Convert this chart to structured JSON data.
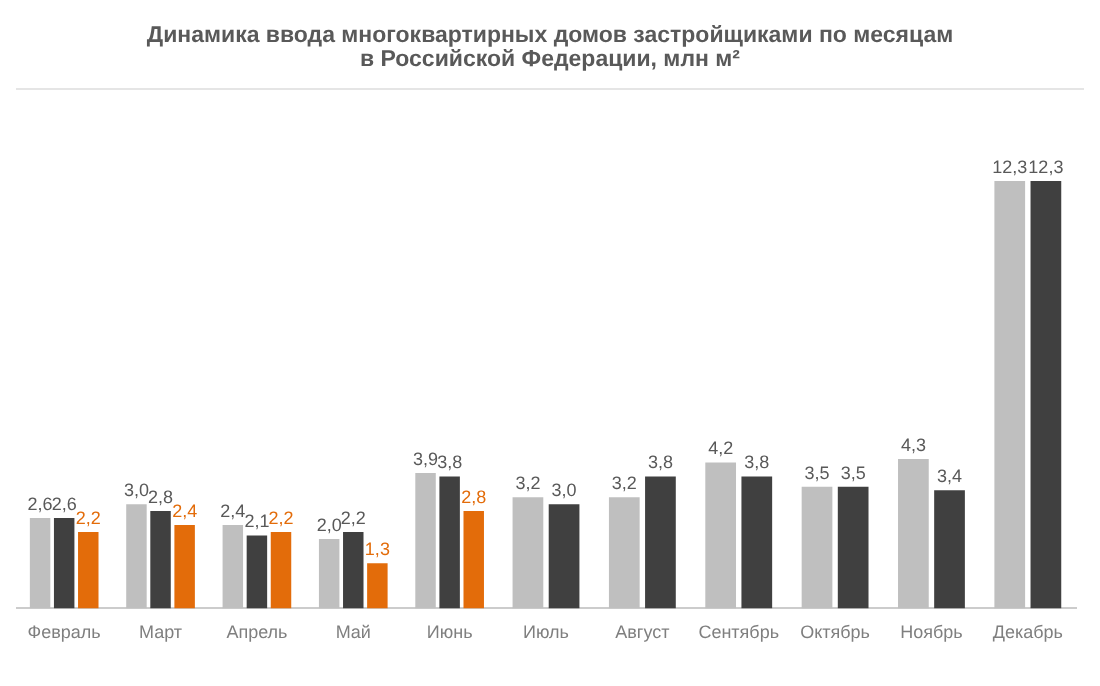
{
  "chart_data": {
    "type": "bar",
    "title": "Динамика ввода многоквартирных домов застройщиками по месяцам\nв Российской Федерации, млн м²",
    "categories": [
      "Февраль",
      "Март",
      "Апрель",
      "Май",
      "Июнь",
      "Июль",
      "Август",
      "Сентябрь",
      "Октябрь",
      "Ноябрь",
      "Декабрь"
    ],
    "series": [
      {
        "color": "#bfbfbf",
        "values": [
          2.6,
          3.0,
          2.4,
          2.0,
          3.9,
          3.2,
          3.2,
          4.2,
          3.5,
          4.3,
          12.3
        ],
        "value_labels": [
          "2,6",
          "3,0",
          "2,4",
          "2,0",
          "3,9",
          "3,2",
          "3,2",
          "4,2",
          "3,5",
          "4,3",
          "12,3"
        ]
      },
      {
        "color": "#404040",
        "values": [
          2.6,
          2.8,
          2.1,
          2.2,
          3.8,
          3.0,
          3.8,
          3.8,
          3.5,
          3.4,
          12.3
        ],
        "value_labels": [
          "2,6",
          "2,8",
          "2,1",
          "2,2",
          "3,8",
          "3,0",
          "3,8",
          "3,8",
          "3,5",
          "3,4",
          "12,3"
        ]
      },
      {
        "color": "#e36c0a",
        "values": [
          2.2,
          2.4,
          2.2,
          1.3,
          2.8,
          null,
          null,
          null,
          null,
          null,
          null
        ],
        "value_labels": [
          "2,2",
          "2,4",
          "2,2",
          "1,3",
          "2,8",
          null,
          null,
          null,
          null,
          null,
          null
        ]
      }
    ],
    "grid": false,
    "legend": false
  }
}
